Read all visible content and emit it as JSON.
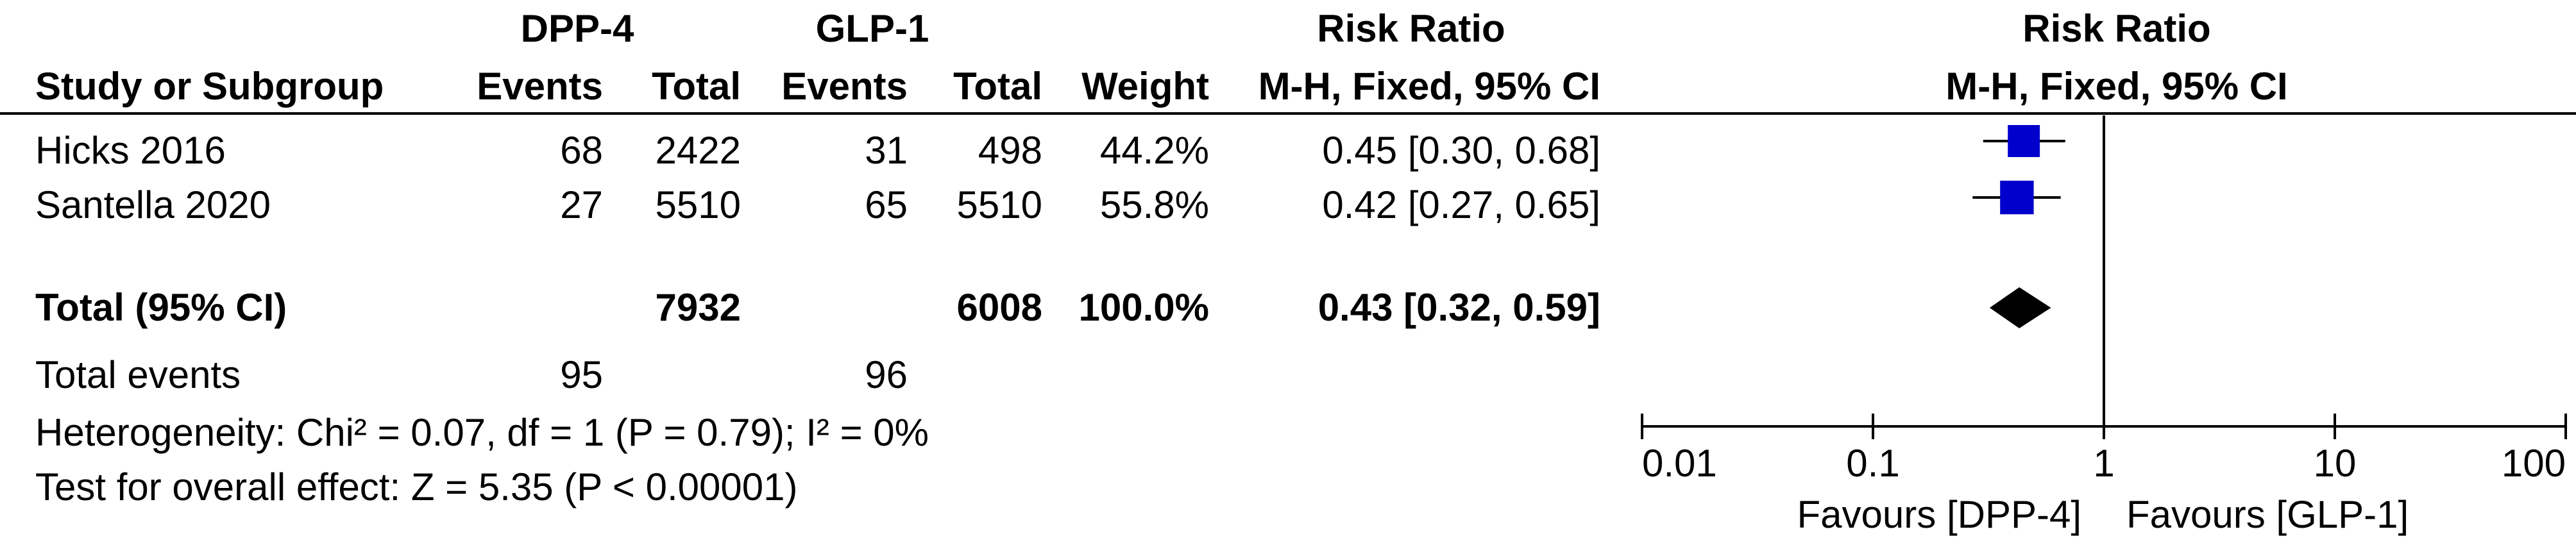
{
  "header": {
    "group1": "DPP-4",
    "group2": "GLP-1",
    "rr_title": "Risk Ratio",
    "col_study": "Study or Subgroup",
    "col_events1": "Events",
    "col_total1": "Total",
    "col_events2": "Events",
    "col_total2": "Total",
    "col_weight": "Weight",
    "col_method": "M-H, Fixed, 95% CI",
    "plot_title": "Risk Ratio",
    "plot_method": "M-H, Fixed, 95% CI"
  },
  "studies": [
    {
      "name": "Hicks 2016",
      "events1": "68",
      "total1": "2422",
      "events2": "31",
      "total2": "498",
      "weight": "44.2%",
      "rr_text": "0.45 [0.30, 0.68]"
    },
    {
      "name": "Santella 2020",
      "events1": "27",
      "total1": "5510",
      "events2": "65",
      "total2": "5510",
      "weight": "55.8%",
      "rr_text": "0.42 [0.27, 0.65]"
    }
  ],
  "total_row": {
    "label": "Total (95% CI)",
    "total1": "7932",
    "total2": "6008",
    "weight": "100.0%",
    "rr_text": "0.43 [0.32, 0.59]"
  },
  "total_events": {
    "label": "Total events",
    "events1": "95",
    "events2": "96"
  },
  "heterogeneity": "Heterogeneity: Chi² = 0.07, df = 1 (P = 0.79); I² = 0%",
  "overall_effect": "Test for overall effect: Z = 5.35 (P < 0.00001)",
  "chart_data": {
    "type": "forest",
    "x_scale": "log",
    "xlim": [
      0.01,
      100
    ],
    "ticks": [
      0.01,
      0.1,
      1,
      10,
      100
    ],
    "tick_labels": [
      "0.01",
      "0.1",
      "1",
      "10",
      "100"
    ],
    "null_line": 1,
    "favours_left": "Favours [DPP-4]",
    "favours_right": "Favours [GLP-1]",
    "marker_color": "#0000cc",
    "studies": [
      {
        "name": "Hicks 2016",
        "estimate": 0.45,
        "lower": 0.3,
        "upper": 0.68,
        "weight": 44.2
      },
      {
        "name": "Santella 2020",
        "estimate": 0.42,
        "lower": 0.27,
        "upper": 0.65,
        "weight": 55.8
      }
    ],
    "pooled": {
      "estimate": 0.43,
      "lower": 0.32,
      "upper": 0.59
    }
  }
}
